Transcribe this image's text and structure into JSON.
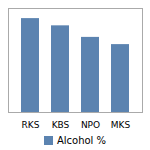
{
  "chart_data": {
    "type": "bar",
    "categories": [
      "RKS",
      "KBS",
      "NPO",
      "MKS"
    ],
    "series": [
      {
        "name": "Alcohol %",
        "color": "#5b83b0",
        "values": [
          6.5,
          6.0,
          5.2,
          4.7
        ]
      }
    ],
    "ylim": [
      0,
      7.2
    ],
    "tick_labels": "x",
    "legend": "bottom"
  }
}
